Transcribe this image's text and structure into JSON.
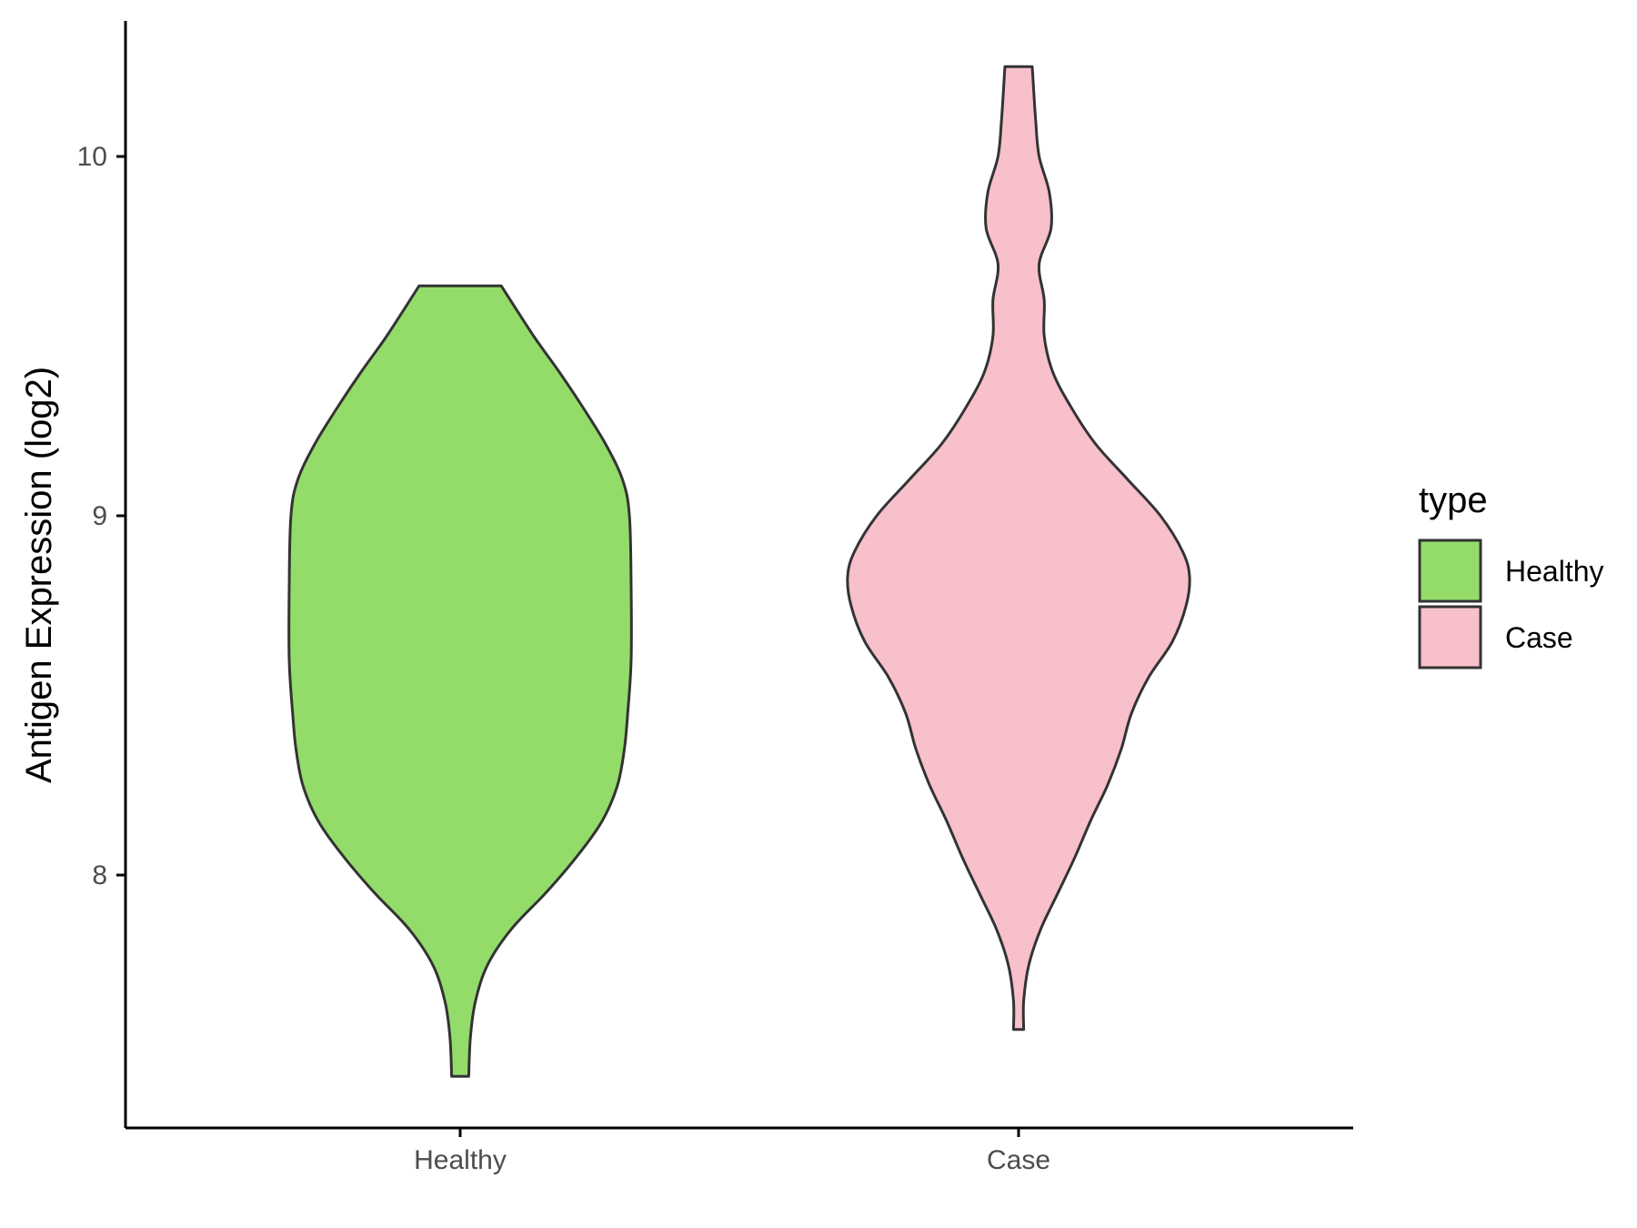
{
  "chart_data": {
    "type": "violin",
    "title": "",
    "xlabel": "",
    "ylabel": "Antigen Expression (log2)",
    "ylim": [
      7.3,
      10.38
    ],
    "yticks": [
      8,
      9,
      10
    ],
    "yticks_labels": [
      "8",
      "9",
      "10"
    ],
    "categories": [
      "Healthy",
      "Case"
    ],
    "grid": false,
    "legend": {
      "title": "type",
      "position": "right",
      "entries": [
        {
          "label": "Healthy",
          "color": "#93dc6a"
        },
        {
          "label": "Case",
          "color": "#f7c0cb"
        }
      ]
    },
    "series": [
      {
        "name": "Healthy",
        "color": "#93dc6a",
        "ymin": 7.44,
        "ymax": 9.64,
        "density_profile": [
          [
            7.44,
            0.05
          ],
          [
            7.55,
            0.06
          ],
          [
            7.65,
            0.09
          ],
          [
            7.75,
            0.16
          ],
          [
            7.85,
            0.3
          ],
          [
            7.95,
            0.5
          ],
          [
            8.05,
            0.68
          ],
          [
            8.15,
            0.83
          ],
          [
            8.25,
            0.92
          ],
          [
            8.35,
            0.96
          ],
          [
            8.45,
            0.98
          ],
          [
            8.6,
            1.0
          ],
          [
            8.8,
            1.0
          ],
          [
            9.0,
            0.99
          ],
          [
            9.1,
            0.95
          ],
          [
            9.2,
            0.85
          ],
          [
            9.3,
            0.72
          ],
          [
            9.4,
            0.58
          ],
          [
            9.5,
            0.43
          ],
          [
            9.64,
            0.24
          ]
        ]
      },
      {
        "name": "Case",
        "color": "#f7c0cb",
        "ymin": 7.57,
        "ymax": 10.25,
        "density_profile": [
          [
            7.57,
            0.03
          ],
          [
            7.65,
            0.03
          ],
          [
            7.75,
            0.06
          ],
          [
            7.85,
            0.13
          ],
          [
            7.95,
            0.23
          ],
          [
            8.05,
            0.33
          ],
          [
            8.15,
            0.42
          ],
          [
            8.25,
            0.52
          ],
          [
            8.35,
            0.6
          ],
          [
            8.45,
            0.66
          ],
          [
            8.55,
            0.76
          ],
          [
            8.65,
            0.9
          ],
          [
            8.75,
            0.98
          ],
          [
            8.83,
            1.0
          ],
          [
            8.9,
            0.96
          ],
          [
            9.0,
            0.83
          ],
          [
            9.1,
            0.64
          ],
          [
            9.2,
            0.45
          ],
          [
            9.3,
            0.31
          ],
          [
            9.4,
            0.2
          ],
          [
            9.5,
            0.15
          ],
          [
            9.6,
            0.15
          ],
          [
            9.7,
            0.12
          ],
          [
            9.8,
            0.19
          ],
          [
            9.9,
            0.18
          ],
          [
            10.0,
            0.12
          ],
          [
            10.1,
            0.1
          ],
          [
            10.25,
            0.08
          ]
        ]
      }
    ]
  }
}
